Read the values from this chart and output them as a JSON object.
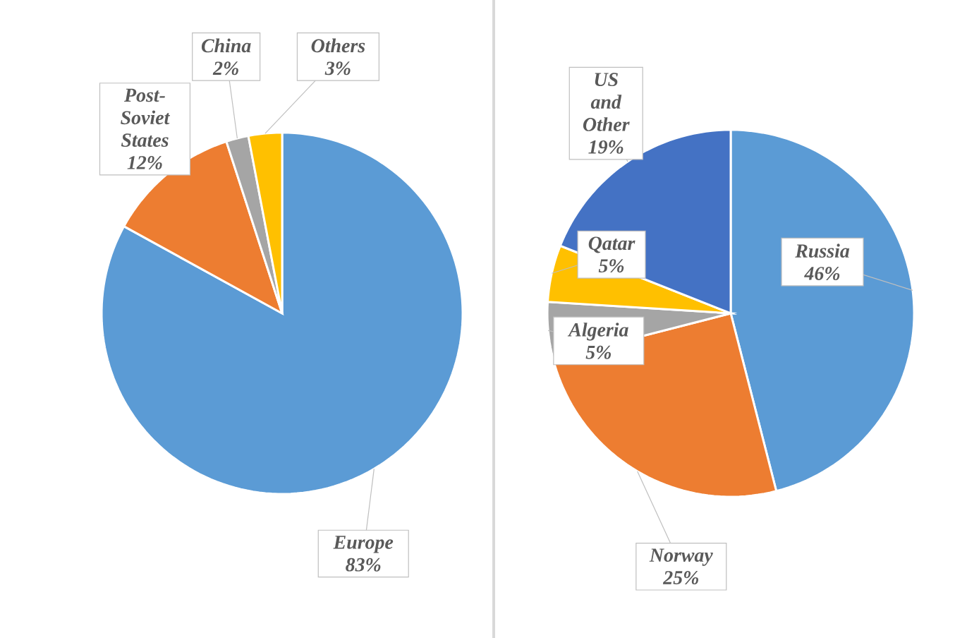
{
  "chart_data": [
    {
      "type": "pie",
      "categories": [
        "Europe",
        "Post-Soviet States",
        "China",
        "Others"
      ],
      "values": [
        83,
        12,
        2,
        3
      ],
      "colors": [
        "#5b9bd5",
        "#ed7d31",
        "#a5a5a5",
        "#ffc000"
      ],
      "value_labels": [
        "83%",
        "12%",
        "2%",
        "3%"
      ]
    },
    {
      "type": "pie",
      "categories": [
        "Russia",
        "Norway",
        "Algeria",
        "Qatar",
        "US and Other"
      ],
      "values": [
        46,
        25,
        5,
        5,
        19
      ],
      "colors": [
        "#5b9bd5",
        "#ed7d31",
        "#a5a5a5",
        "#ffc000",
        "#4472c4"
      ],
      "value_labels": [
        "46%",
        "25%",
        "5%",
        "5%",
        "19%"
      ]
    }
  ]
}
